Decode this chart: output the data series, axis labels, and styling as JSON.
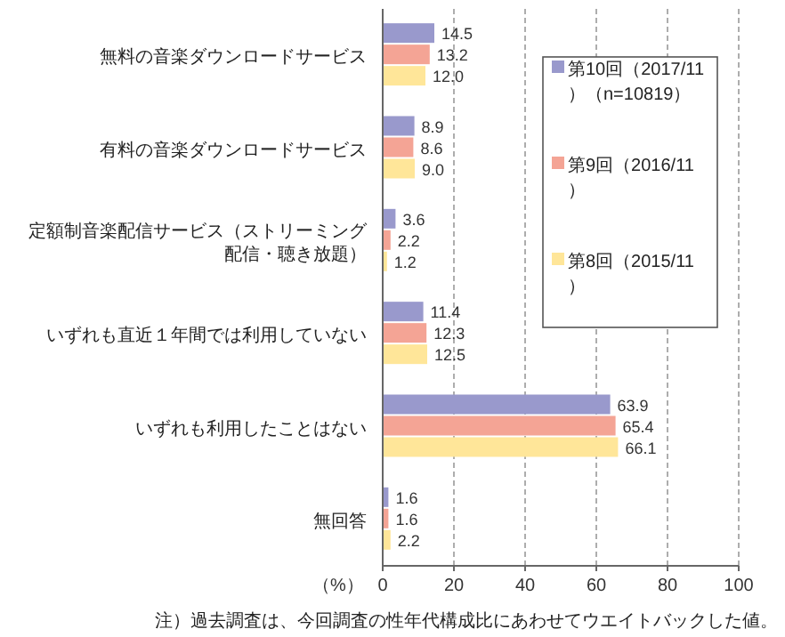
{
  "chart_data": {
    "type": "bar",
    "orientation": "horizontal",
    "categories": [
      "無料の音楽ダウンロードサービス",
      "有料の音楽ダウンロードサービス",
      "定額制音楽配信サービス（ストリーミング配信・聴き放題）",
      "いずれも直近１年間では利用していない",
      "いずれも利用したことはない",
      "無回答"
    ],
    "series": [
      {
        "name": "第10回（2017/11）（n=10819）",
        "color": "#9999cc",
        "values": [
          14.5,
          8.9,
          3.6,
          11.4,
          63.9,
          1.6
        ],
        "value_labels": [
          "14.5",
          "8.9",
          "3.6",
          "11.4",
          "63.9",
          "1.6"
        ]
      },
      {
        "name": "第9回（2016/11）",
        "color": "#f4a495",
        "values": [
          13.2,
          8.6,
          2.2,
          12.3,
          65.4,
          1.6
        ],
        "value_labels": [
          "13.2",
          "8.6",
          "2.2",
          "12.3",
          "65.4",
          "1.6"
        ]
      },
      {
        "name": "第8回（2015/11）",
        "color": "#ffe699",
        "values": [
          12.0,
          9.0,
          1.2,
          12.5,
          66.1,
          2.2
        ],
        "value_labels": [
          "12.0",
          "9.0",
          "1.2",
          "12.5",
          "66.1",
          "2.2"
        ]
      }
    ],
    "xlim": [
      0,
      100
    ],
    "xticks": [
      0,
      20,
      40,
      60,
      80,
      100
    ],
    "grid": "x",
    "legend": "top right",
    "xlabel": "（%）",
    "annotations": [
      "注）過去調査は、今回調査の性年代構成比にあわせてウエイトバックした値。"
    ]
  }
}
